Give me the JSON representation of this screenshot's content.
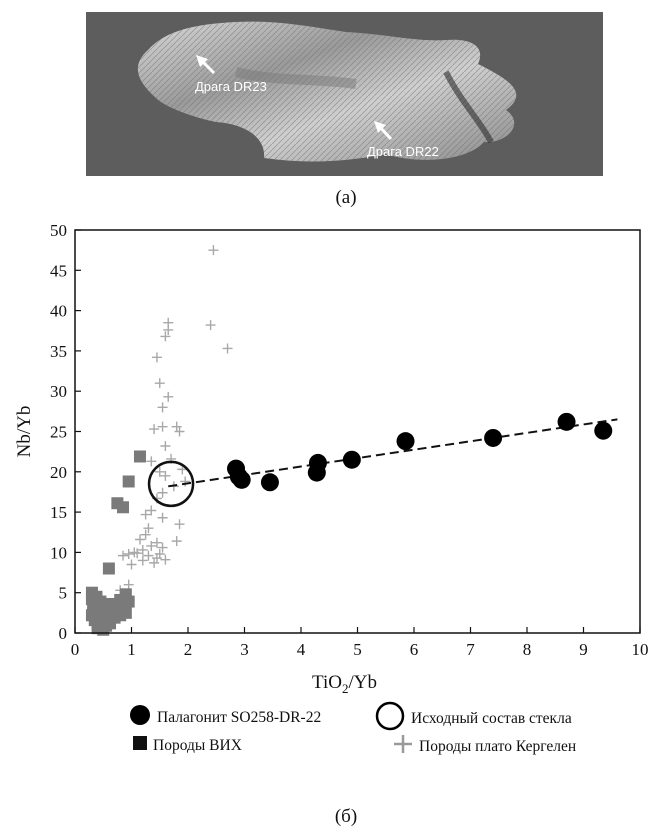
{
  "panel_a": {
    "label_dr23": "Драга DR23",
    "label_dr22": "Драга DR22",
    "caption": "(а)"
  },
  "panel_b": {
    "caption": "(б)"
  },
  "legend": {
    "palagonite": "Палагонит SO258-DR-22",
    "initial_glass": "Исходный состав стекла",
    "vih": "Породы ВИХ",
    "kerguelen": "Породы плато Кергелен"
  },
  "chart_data": {
    "type": "scatter",
    "title": "",
    "xlabel_main": "TiO",
    "xlabel_sub": "2",
    "xlabel_rest": "/Yb",
    "ylabel": "Nb/Yb",
    "xlim": [
      0,
      10
    ],
    "ylim": [
      0,
      50
    ],
    "x_ticks": [
      0,
      1,
      2,
      3,
      4,
      5,
      6,
      7,
      8,
      9,
      10
    ],
    "y_ticks": [
      0,
      5,
      10,
      15,
      20,
      25,
      30,
      35,
      40,
      45,
      50
    ],
    "grid": false,
    "colors": {
      "palagonite": "#000000",
      "vih": "#7a7a7a",
      "kerguelen": "#a8a8a8"
    },
    "trend_line": {
      "x": [
        1.65,
        9.6
      ],
      "y": [
        18.2,
        26.5
      ],
      "style": "dashed"
    },
    "series": [
      {
        "name": "Палагонит SO258-DR-22",
        "marker": "filled-circle",
        "points": [
          [
            2.85,
            20.4
          ],
          [
            2.9,
            19.4
          ],
          [
            2.95,
            19.0
          ],
          [
            3.45,
            18.7
          ],
          [
            4.3,
            21.1
          ],
          [
            4.28,
            19.9
          ],
          [
            4.9,
            21.5
          ],
          [
            5.85,
            23.8
          ],
          [
            7.4,
            24.2
          ],
          [
            8.7,
            26.2
          ],
          [
            9.35,
            25.1
          ]
        ]
      },
      {
        "name": "Исходный состав стекла",
        "marker": "open-circle",
        "points": [
          [
            1.7,
            18.5
          ]
        ]
      },
      {
        "name": "Породы ВИХ",
        "marker": "square",
        "points": [
          [
            1.15,
            21.9
          ],
          [
            0.95,
            18.8
          ],
          [
            0.75,
            16.1
          ],
          [
            0.85,
            15.6
          ],
          [
            0.6,
            8.0
          ],
          [
            0.3,
            5.0
          ],
          [
            0.3,
            4.2
          ],
          [
            0.32,
            3.5
          ],
          [
            0.35,
            2.8
          ],
          [
            0.3,
            2.2
          ],
          [
            0.35,
            1.6
          ],
          [
            0.4,
            1.1
          ],
          [
            0.4,
            0.6
          ],
          [
            0.5,
            0.4
          ],
          [
            0.45,
            2.0
          ],
          [
            0.5,
            3.0
          ],
          [
            0.55,
            1.5
          ],
          [
            0.6,
            2.5
          ],
          [
            0.65,
            3.6
          ],
          [
            0.7,
            1.9
          ],
          [
            0.75,
            2.9
          ],
          [
            0.8,
            4.1
          ],
          [
            0.85,
            3.3
          ],
          [
            0.9,
            2.5
          ],
          [
            0.9,
            4.8
          ],
          [
            0.95,
            3.9
          ],
          [
            0.7,
            2.0
          ],
          [
            0.55,
            0.9
          ],
          [
            0.45,
            3.9
          ],
          [
            0.38,
            4.5
          ],
          [
            0.62,
            1.2
          ],
          [
            0.8,
            2.2
          ]
        ]
      },
      {
        "name": "Породы плато Кергелен",
        "marker": "plus",
        "points": [
          [
            2.45,
            47.5
          ],
          [
            1.65,
            38.5
          ],
          [
            1.6,
            36.8
          ],
          [
            1.65,
            37.6
          ],
          [
            2.4,
            38.2
          ],
          [
            2.7,
            35.3
          ],
          [
            1.45,
            34.2
          ],
          [
            1.5,
            31.0
          ],
          [
            1.65,
            29.3
          ],
          [
            1.55,
            28.0
          ],
          [
            1.4,
            25.3
          ],
          [
            1.55,
            25.6
          ],
          [
            1.8,
            25.6
          ],
          [
            1.85,
            25.0
          ],
          [
            1.6,
            23.2
          ],
          [
            1.7,
            21.6
          ],
          [
            1.35,
            21.3
          ],
          [
            1.5,
            20.0
          ],
          [
            1.9,
            20.3
          ],
          [
            1.95,
            18.8
          ],
          [
            1.6,
            19.5
          ],
          [
            1.75,
            18.2
          ],
          [
            1.55,
            17.4
          ],
          [
            1.45,
            16.7
          ],
          [
            1.35,
            15.2
          ],
          [
            1.25,
            14.7
          ],
          [
            1.55,
            14.3
          ],
          [
            1.85,
            13.5
          ],
          [
            1.3,
            13.0
          ],
          [
            1.25,
            12.2
          ],
          [
            1.15,
            11.6
          ],
          [
            1.8,
            11.4
          ],
          [
            1.45,
            11.2
          ],
          [
            1.35,
            10.8
          ],
          [
            1.2,
            10.3
          ],
          [
            1.05,
            10.0
          ],
          [
            0.95,
            9.8
          ],
          [
            1.5,
            9.8
          ],
          [
            1.3,
            9.6
          ],
          [
            1.45,
            9.3
          ],
          [
            1.6,
            9.1
          ],
          [
            1.2,
            9.0
          ],
          [
            1.4,
            8.7
          ],
          [
            1.0,
            8.5
          ],
          [
            0.85,
            9.6
          ],
          [
            1.1,
            9.9
          ],
          [
            1.55,
            10.6
          ],
          [
            0.95,
            6.0
          ],
          [
            0.85,
            4.5
          ],
          [
            0.8,
            5.3
          ]
        ]
      }
    ]
  }
}
